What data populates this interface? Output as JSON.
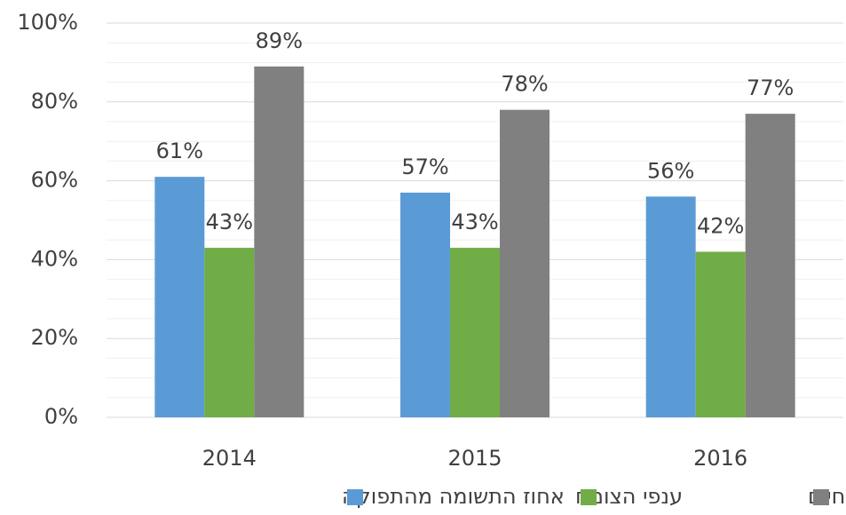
{
  "chart_data": {
    "type": "bar",
    "categories": [
      "2014",
      "2015",
      "2016"
    ],
    "series": [
      {
        "name": "אחוז התשומה מהתפוקה",
        "color": "#5b9bd5",
        "values": [
          61,
          57,
          56
        ],
        "value_labels": [
          "61%",
          "57%",
          "56%"
        ]
      },
      {
        "name": "ענפי הצומח",
        "color": "#70ad47",
        "values": [
          43,
          43,
          42
        ],
        "value_labels": [
          "43%",
          "43%",
          "42%"
        ]
      },
      {
        "name": "ענפי בעלי חיים",
        "color": "#808080",
        "values": [
          89,
          78,
          77
        ],
        "value_labels": [
          "89%",
          "78%",
          "77%"
        ]
      }
    ],
    "ylim": [
      0,
      100
    ],
    "yticks": [
      {
        "value": 0,
        "label": "0%"
      },
      {
        "value": 20,
        "label": "20%"
      },
      {
        "value": 40,
        "label": "40%"
      },
      {
        "value": 60,
        "label": "60%"
      },
      {
        "value": 80,
        "label": "80%"
      },
      {
        "value": 100,
        "label": "100%"
      }
    ],
    "yminor_ticks": [
      5,
      10,
      15,
      25,
      30,
      35,
      45,
      50,
      55,
      65,
      70,
      75,
      85,
      90,
      95
    ],
    "grid": true,
    "legend": "bottom"
  }
}
